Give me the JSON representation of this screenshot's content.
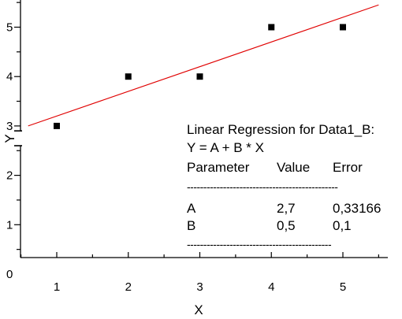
{
  "chart_data": {
    "type": "scatter",
    "xlabel": "X",
    "ylabel": "Y",
    "xlim": [
      0.5,
      5.5
    ],
    "ylim": [
      0,
      5.5
    ],
    "axis_break": [
      2.6,
      2.9
    ],
    "x_ticks": [
      "1",
      "2",
      "3",
      "4",
      "5"
    ],
    "y_ticks": [
      "0",
      "1",
      "2",
      "3",
      "4",
      "5"
    ],
    "series": [
      {
        "x": [
          1,
          2,
          3,
          4,
          5
        ],
        "y": [
          3,
          4,
          4,
          5,
          5
        ],
        "marker": "square",
        "color": "#000000"
      }
    ],
    "fit": {
      "type": "line",
      "intercept": 2.7,
      "slope": 0.5,
      "x_range": [
        0.6,
        5.5
      ],
      "color": "#e00000"
    },
    "annotation": {
      "title": "Linear Regression for Data1_B:",
      "equation": "Y = A + B * X",
      "headers": [
        "Parameter",
        "Value",
        "Error"
      ],
      "rule1": "----------------------------------------------",
      "rows": [
        {
          "param": "A",
          "value": "2,7",
          "error": "0,33166"
        },
        {
          "param": "B",
          "value": "0,5",
          "error": "0,1"
        }
      ],
      "rule2": "--------------------------------------------"
    }
  }
}
